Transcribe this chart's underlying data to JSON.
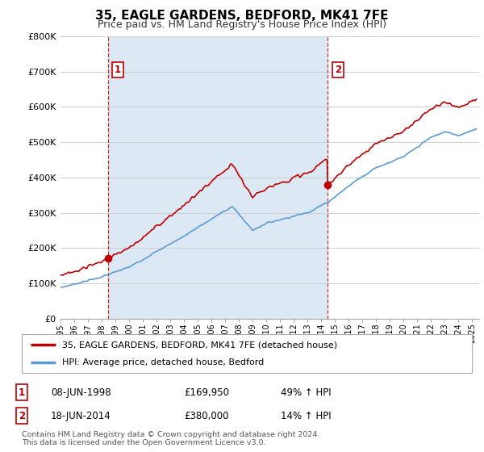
{
  "title": "35, EAGLE GARDENS, BEDFORD, MK41 7FE",
  "subtitle": "Price paid vs. HM Land Registry's House Price Index (HPI)",
  "ylim": [
    0,
    800000
  ],
  "yticks": [
    0,
    100000,
    200000,
    300000,
    400000,
    500000,
    600000,
    700000,
    800000
  ],
  "x_start_year": 1995.0,
  "x_end_year": 2025.5,
  "purchase1": {
    "date_num": 1998.44,
    "price": 169950,
    "label": "1"
  },
  "purchase2": {
    "date_num": 2014.46,
    "price": 380000,
    "label": "2"
  },
  "legend_line1": "35, EAGLE GARDENS, BEDFORD, MK41 7FE (detached house)",
  "legend_line2": "HPI: Average price, detached house, Bedford",
  "table_row1": [
    "1",
    "08-JUN-1998",
    "£169,950",
    "49% ↑ HPI"
  ],
  "table_row2": [
    "2",
    "18-JUN-2014",
    "£380,000",
    "14% ↑ HPI"
  ],
  "footer": "Contains HM Land Registry data © Crown copyright and database right 2024.\nThis data is licensed under the Open Government Licence v3.0.",
  "hpi_color": "#5b9bd5",
  "price_color": "#c00000",
  "vline_color": "#c00000",
  "shade_color": "#dce9f5",
  "background_color": "#ffffff",
  "grid_color": "#d0d0d0"
}
